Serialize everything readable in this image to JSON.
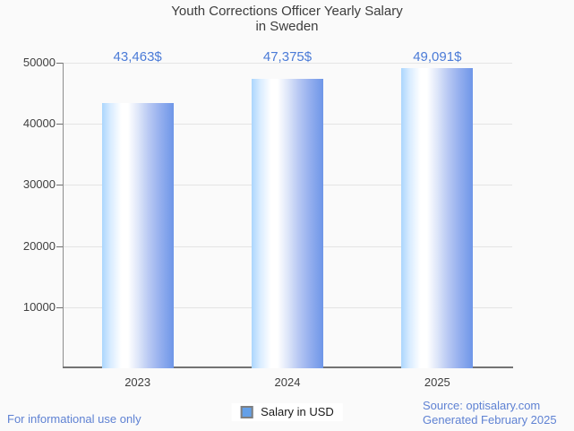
{
  "title": {
    "line1": "Youth Corrections Officer Yearly Salary",
    "line2": "in Sweden"
  },
  "legend": {
    "label": "Salary in USD"
  },
  "footer": {
    "left": "For informational use only",
    "source": "Source: optisalary.com",
    "generated": "Generated February 2025"
  },
  "colors": {
    "background": "#fafafa",
    "accent_text_blue": "#4b7bd7",
    "footer_blue": "#5f82d3",
    "bar_edge_light": "#abd6fd",
    "bar_edge_dark": "#6e96e8",
    "legend_marker_fill": "#64a0e8",
    "legend_marker_border": "#7f7f7f",
    "gridline": "#e4e4e4",
    "axis_text": "#3f3f3f"
  },
  "chart_data": {
    "type": "bar",
    "title": "Youth Corrections Officer Yearly Salary in Sweden",
    "series_name": "Salary in USD",
    "categories": [
      "2023",
      "2024",
      "2025"
    ],
    "values": [
      43463,
      47375,
      49091
    ],
    "value_labels": [
      "43,463$",
      "47,375$",
      "49,091$"
    ],
    "xlabel": "",
    "ylabel": "",
    "ylim": [
      0,
      50000
    ],
    "yticks": [
      10000,
      20000,
      30000,
      40000,
      50000
    ],
    "grid": true,
    "legend_position": "bottom"
  }
}
